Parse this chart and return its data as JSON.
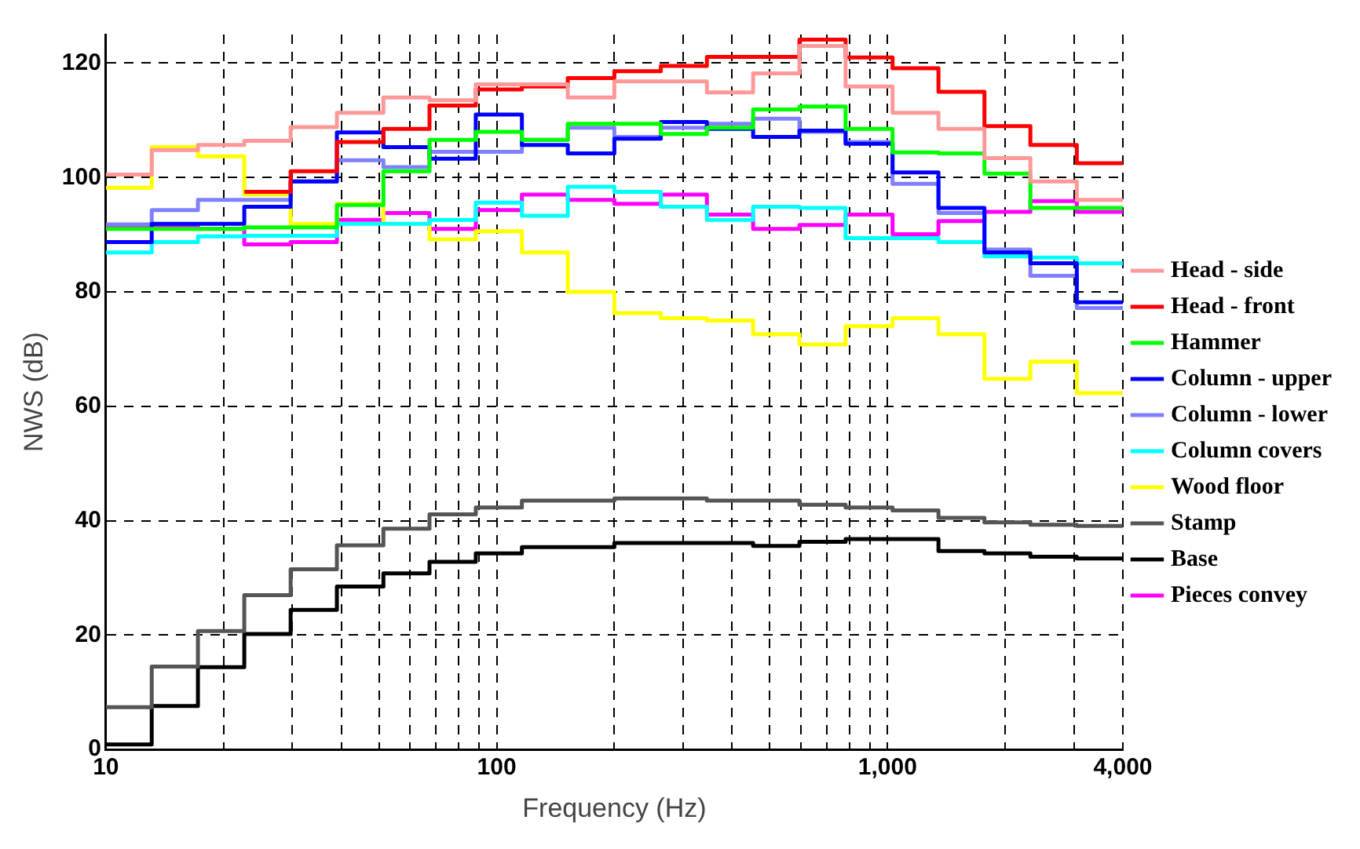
{
  "chart_data": {
    "type": "step",
    "xlabel": "Frequency (Hz)",
    "ylabel": "NWS (dB)",
    "log": "x",
    "grid": true,
    "legend": "right",
    "line_style": "solid",
    "marker": "none",
    "x": [
      10,
      13.1,
      17.2,
      22.6,
      29.7,
      39,
      51.3,
      67.3,
      88.4,
      116,
      152,
      200,
      263,
      345,
      453,
      595,
      781,
      1030,
      1350,
      1770,
      2320,
      3050,
      4000
    ],
    "xlim": [
      10,
      4000
    ],
    "xticks": [
      10,
      {
        "value": 20,
        "label": null
      },
      {
        "value": 30,
        "label": null
      },
      {
        "value": 40,
        "label": null
      },
      {
        "value": 50,
        "label": null
      },
      {
        "value": 60,
        "label": null
      },
      {
        "value": 70,
        "label": null
      },
      {
        "value": 80,
        "label": null
      },
      {
        "value": 90,
        "label": null
      },
      100,
      {
        "value": 200,
        "label": null
      },
      {
        "value": 300,
        "label": null
      },
      {
        "value": 400,
        "label": null
      },
      {
        "value": 500,
        "label": null
      },
      {
        "value": 600,
        "label": null
      },
      {
        "value": 700,
        "label": null
      },
      {
        "value": 800,
        "label": null
      },
      {
        "value": 900,
        "label": null
      },
      {
        "value": 1000,
        "label": "1,000"
      },
      {
        "value": 2000,
        "label": null
      },
      {
        "value": 3000,
        "label": null
      },
      {
        "value": 4000,
        "label": "4,000"
      }
    ],
    "ylim": [
      0,
      125
    ],
    "yticks": [
      0,
      20,
      40,
      60,
      80,
      100,
      120
    ],
    "series": [
      {
        "name": "Head - side",
        "color": "#ff9999",
        "values": [
          100.5,
          104.8,
          105.7,
          106.4,
          108.8,
          111.3,
          114,
          113.5,
          116.3,
          116.3,
          114,
          116.8,
          116.8,
          114.9,
          118.2,
          123,
          115.9,
          111.3,
          108.5,
          103.4,
          99.3,
          96.1,
          96.1
        ]
      },
      {
        "name": "Head - front",
        "color": "#ff0000",
        "values": [
          null,
          null,
          null,
          97.5,
          101.1,
          106.2,
          108.5,
          112.6,
          115.4,
          115.9,
          117.4,
          118.6,
          119.5,
          121.1,
          121.1,
          124.1,
          121,
          119.1,
          115,
          109,
          105.7,
          102.5,
          102.5
        ]
      },
      {
        "name": "Hammer",
        "color": "#00ff00",
        "values": [
          91,
          91,
          91,
          91.3,
          91.3,
          95.2,
          101.1,
          106.6,
          108,
          106.6,
          109.4,
          109.4,
          107.6,
          108.7,
          111.9,
          112.4,
          108.5,
          104.4,
          104.2,
          100.7,
          94.7,
          94.7,
          94.7
        ]
      },
      {
        "name": "Column - upper",
        "color": "#0000ff",
        "values": [
          88.7,
          91.9,
          91.9,
          94.9,
          99.3,
          107.9,
          105.3,
          103.3,
          111,
          105.7,
          104.2,
          106.8,
          109.7,
          108.5,
          107.1,
          108.2,
          105.9,
          100.9,
          94.7,
          86.9,
          85,
          78.2,
          78.2
        ]
      },
      {
        "name": "Column - lower",
        "color": "#8080ff",
        "values": [
          91.8,
          94.3,
          96.1,
          96.1,
          99.3,
          103,
          101.8,
          104.5,
          104.5,
          106.6,
          108.7,
          107.1,
          108.7,
          109.4,
          110.3,
          108,
          106.2,
          98.9,
          93.8,
          87.4,
          82.8,
          77.2,
          77.2
        ]
      },
      {
        "name": "Column covers",
        "color": "#00ffff",
        "values": [
          86.9,
          88.7,
          89.7,
          89.8,
          89.8,
          91.9,
          91.9,
          92.6,
          95.6,
          93.3,
          98.4,
          97.5,
          94.9,
          92.6,
          94.9,
          94.7,
          89.4,
          89.4,
          88.7,
          86.2,
          86,
          85,
          85
        ]
      },
      {
        "name": "Wood floor",
        "color": "#ffff00",
        "values": [
          98.2,
          105.3,
          103.7,
          97,
          91.9,
          95.4,
          91.9,
          89.2,
          90.6,
          86.9,
          80,
          76.3,
          75.4,
          75,
          72.6,
          70.8,
          74,
          75.4,
          72.6,
          64.8,
          67.8,
          62.3,
          62.3
        ]
      },
      {
        "name": "Stamp",
        "color": "#555555",
        "values": [
          7.4,
          14.5,
          20.7,
          27,
          31.5,
          35.7,
          38.6,
          41.1,
          42.3,
          43.5,
          43.5,
          43.9,
          43.9,
          43.5,
          43.5,
          42.8,
          42.3,
          41.8,
          40.5,
          39.7,
          39.3,
          39.1,
          39.1
        ]
      },
      {
        "name": "Base",
        "color": "#000000",
        "values": [
          0.9,
          7.6,
          14.4,
          20.2,
          24.4,
          28.5,
          30.8,
          32.8,
          34.3,
          35.4,
          35.4,
          36.1,
          36.1,
          36.1,
          35.6,
          36.3,
          36.8,
          36.8,
          34.7,
          34.3,
          33.7,
          33.4,
          33.4
        ]
      },
      {
        "name": "Pieces convey",
        "color": "#ff00ff",
        "values": [
          91.5,
          91.5,
          91,
          88.3,
          88.7,
          92.6,
          93.8,
          91,
          94.3,
          97,
          96.1,
          95.4,
          97,
          93.5,
          91,
          91.7,
          93.5,
          90.1,
          92.4,
          94,
          95.9,
          94,
          94
        ]
      }
    ]
  }
}
